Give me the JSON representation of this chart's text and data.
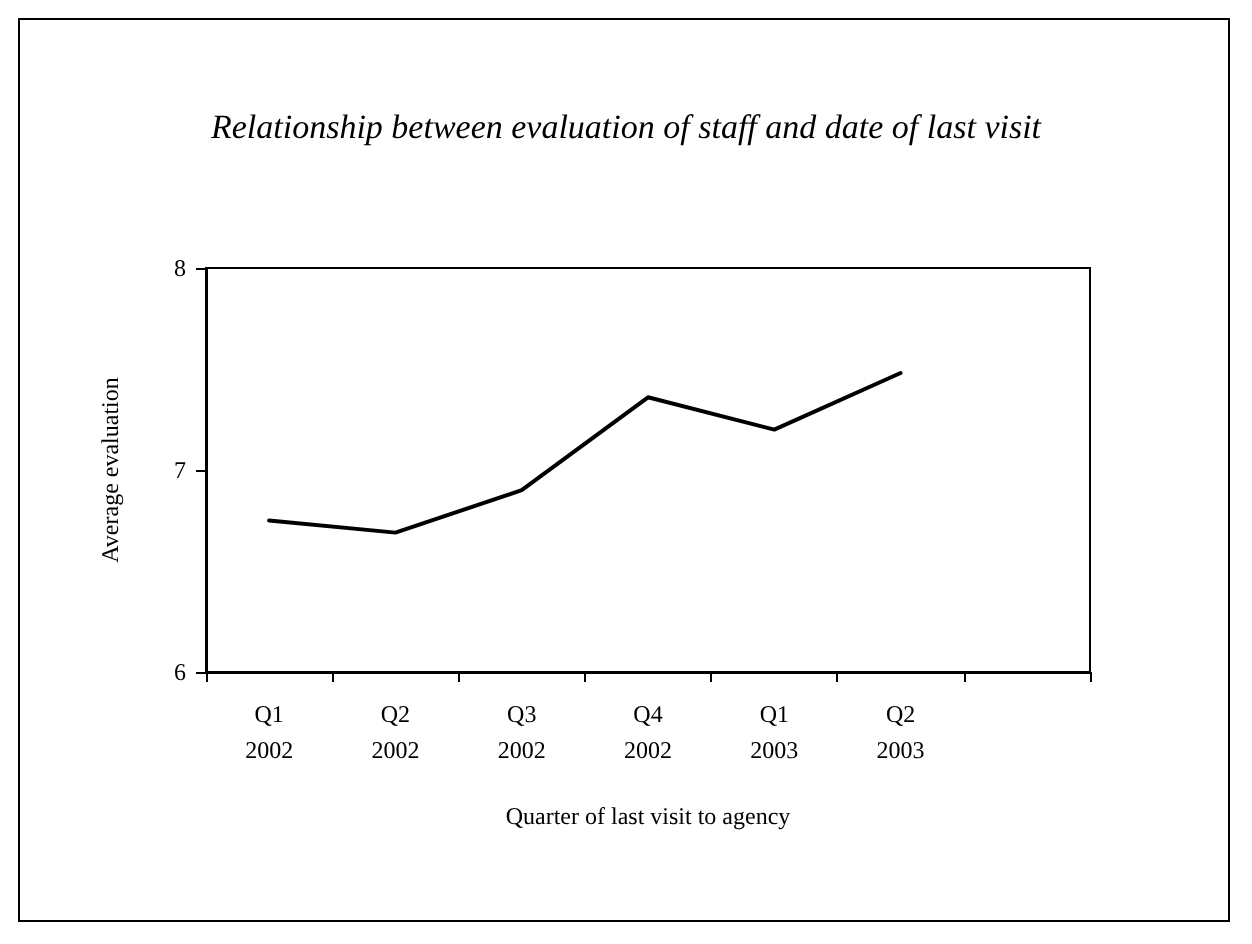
{
  "chart_data": {
    "type": "line",
    "title": "Relationship between evaluation of staff and date of last visit",
    "xlabel": "Quarter of last visit to agency",
    "ylabel": "Average evaluation",
    "categories": [
      "Q1\n2002",
      "Q2\n2002",
      "Q3\n2002",
      "Q4\n2002",
      "Q1\n2003",
      "Q2\n2003",
      null
    ],
    "series": [
      {
        "color": "#000000",
        "values": [
          6.75,
          6.69,
          6.9,
          7.36,
          7.2,
          7.48,
          null
        ]
      }
    ],
    "ylim": [
      6,
      8
    ],
    "yticks": [
      6,
      7,
      8
    ],
    "grid": false,
    "marker": "none",
    "line_style": "solid"
  }
}
